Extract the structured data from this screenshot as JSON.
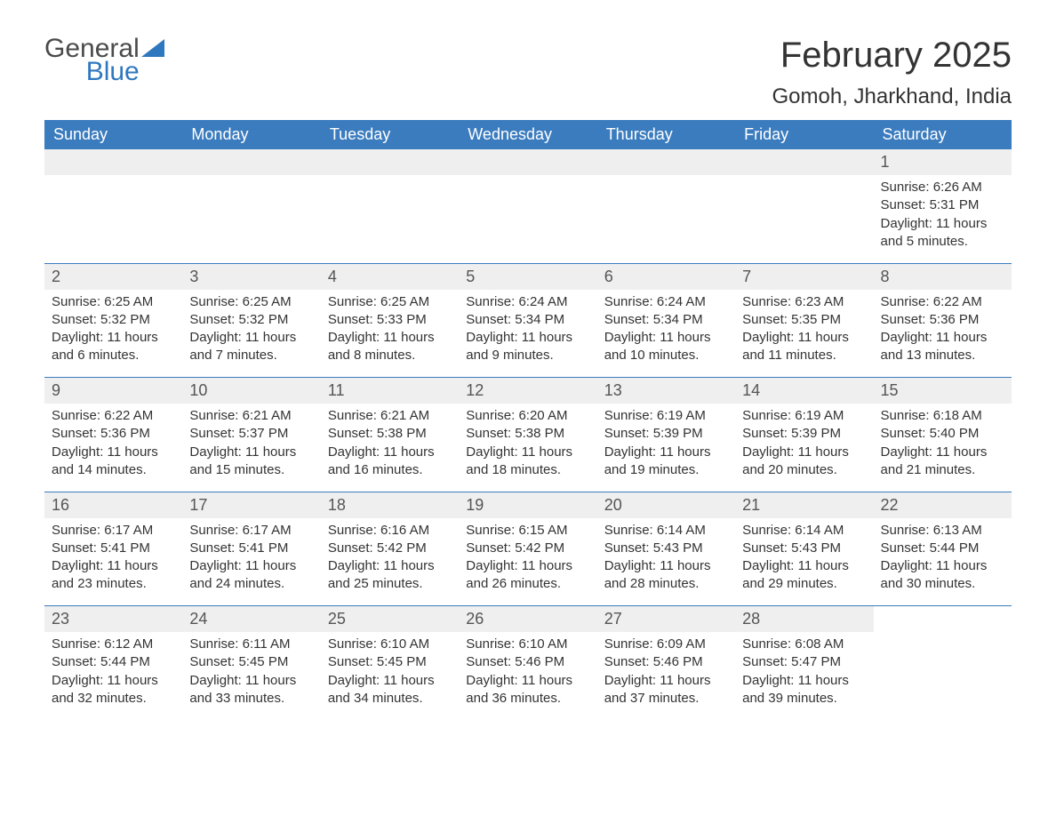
{
  "logo": {
    "line1": "General",
    "line2": "Blue"
  },
  "title": "February 2025",
  "location": "Gomoh, Jharkhand, India",
  "colors": {
    "header_bg": "#3b7cbf",
    "header_fg": "#ffffff",
    "daynum_bg": "#efefef",
    "accent": "#2f78bf",
    "text": "#333333",
    "bg": "#ffffff"
  },
  "weekdays": [
    "Sunday",
    "Monday",
    "Tuesday",
    "Wednesday",
    "Thursday",
    "Friday",
    "Saturday"
  ],
  "weeks": [
    [
      null,
      null,
      null,
      null,
      null,
      null,
      {
        "n": "1",
        "sunrise": "Sunrise: 6:26 AM",
        "sunset": "Sunset: 5:31 PM",
        "day": "Daylight: 11 hours and 5 minutes."
      }
    ],
    [
      {
        "n": "2",
        "sunrise": "Sunrise: 6:25 AM",
        "sunset": "Sunset: 5:32 PM",
        "day": "Daylight: 11 hours and 6 minutes."
      },
      {
        "n": "3",
        "sunrise": "Sunrise: 6:25 AM",
        "sunset": "Sunset: 5:32 PM",
        "day": "Daylight: 11 hours and 7 minutes."
      },
      {
        "n": "4",
        "sunrise": "Sunrise: 6:25 AM",
        "sunset": "Sunset: 5:33 PM",
        "day": "Daylight: 11 hours and 8 minutes."
      },
      {
        "n": "5",
        "sunrise": "Sunrise: 6:24 AM",
        "sunset": "Sunset: 5:34 PM",
        "day": "Daylight: 11 hours and 9 minutes."
      },
      {
        "n": "6",
        "sunrise": "Sunrise: 6:24 AM",
        "sunset": "Sunset: 5:34 PM",
        "day": "Daylight: 11 hours and 10 minutes."
      },
      {
        "n": "7",
        "sunrise": "Sunrise: 6:23 AM",
        "sunset": "Sunset: 5:35 PM",
        "day": "Daylight: 11 hours and 11 minutes."
      },
      {
        "n": "8",
        "sunrise": "Sunrise: 6:22 AM",
        "sunset": "Sunset: 5:36 PM",
        "day": "Daylight: 11 hours and 13 minutes."
      }
    ],
    [
      {
        "n": "9",
        "sunrise": "Sunrise: 6:22 AM",
        "sunset": "Sunset: 5:36 PM",
        "day": "Daylight: 11 hours and 14 minutes."
      },
      {
        "n": "10",
        "sunrise": "Sunrise: 6:21 AM",
        "sunset": "Sunset: 5:37 PM",
        "day": "Daylight: 11 hours and 15 minutes."
      },
      {
        "n": "11",
        "sunrise": "Sunrise: 6:21 AM",
        "sunset": "Sunset: 5:38 PM",
        "day": "Daylight: 11 hours and 16 minutes."
      },
      {
        "n": "12",
        "sunrise": "Sunrise: 6:20 AM",
        "sunset": "Sunset: 5:38 PM",
        "day": "Daylight: 11 hours and 18 minutes."
      },
      {
        "n": "13",
        "sunrise": "Sunrise: 6:19 AM",
        "sunset": "Sunset: 5:39 PM",
        "day": "Daylight: 11 hours and 19 minutes."
      },
      {
        "n": "14",
        "sunrise": "Sunrise: 6:19 AM",
        "sunset": "Sunset: 5:39 PM",
        "day": "Daylight: 11 hours and 20 minutes."
      },
      {
        "n": "15",
        "sunrise": "Sunrise: 6:18 AM",
        "sunset": "Sunset: 5:40 PM",
        "day": "Daylight: 11 hours and 21 minutes."
      }
    ],
    [
      {
        "n": "16",
        "sunrise": "Sunrise: 6:17 AM",
        "sunset": "Sunset: 5:41 PM",
        "day": "Daylight: 11 hours and 23 minutes."
      },
      {
        "n": "17",
        "sunrise": "Sunrise: 6:17 AM",
        "sunset": "Sunset: 5:41 PM",
        "day": "Daylight: 11 hours and 24 minutes."
      },
      {
        "n": "18",
        "sunrise": "Sunrise: 6:16 AM",
        "sunset": "Sunset: 5:42 PM",
        "day": "Daylight: 11 hours and 25 minutes."
      },
      {
        "n": "19",
        "sunrise": "Sunrise: 6:15 AM",
        "sunset": "Sunset: 5:42 PM",
        "day": "Daylight: 11 hours and 26 minutes."
      },
      {
        "n": "20",
        "sunrise": "Sunrise: 6:14 AM",
        "sunset": "Sunset: 5:43 PM",
        "day": "Daylight: 11 hours and 28 minutes."
      },
      {
        "n": "21",
        "sunrise": "Sunrise: 6:14 AM",
        "sunset": "Sunset: 5:43 PM",
        "day": "Daylight: 11 hours and 29 minutes."
      },
      {
        "n": "22",
        "sunrise": "Sunrise: 6:13 AM",
        "sunset": "Sunset: 5:44 PM",
        "day": "Daylight: 11 hours and 30 minutes."
      }
    ],
    [
      {
        "n": "23",
        "sunrise": "Sunrise: 6:12 AM",
        "sunset": "Sunset: 5:44 PM",
        "day": "Daylight: 11 hours and 32 minutes."
      },
      {
        "n": "24",
        "sunrise": "Sunrise: 6:11 AM",
        "sunset": "Sunset: 5:45 PM",
        "day": "Daylight: 11 hours and 33 minutes."
      },
      {
        "n": "25",
        "sunrise": "Sunrise: 6:10 AM",
        "sunset": "Sunset: 5:45 PM",
        "day": "Daylight: 11 hours and 34 minutes."
      },
      {
        "n": "26",
        "sunrise": "Sunrise: 6:10 AM",
        "sunset": "Sunset: 5:46 PM",
        "day": "Daylight: 11 hours and 36 minutes."
      },
      {
        "n": "27",
        "sunrise": "Sunrise: 6:09 AM",
        "sunset": "Sunset: 5:46 PM",
        "day": "Daylight: 11 hours and 37 minutes."
      },
      {
        "n": "28",
        "sunrise": "Sunrise: 6:08 AM",
        "sunset": "Sunset: 5:47 PM",
        "day": "Daylight: 11 hours and 39 minutes."
      },
      null
    ]
  ]
}
